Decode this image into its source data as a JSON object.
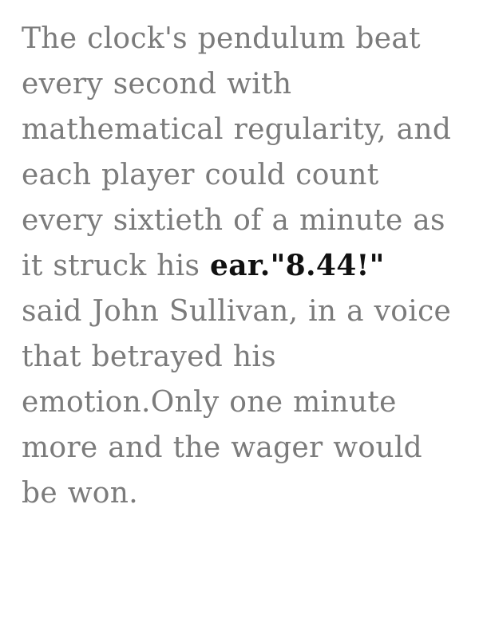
{
  "passage": {
    "before": "The clock's pendulum beat every second with mathematical regularity, and each player could count every sixtieth of a minute as it struck his ",
    "highlight": "ear.\"8.44!\"",
    "after": " said John Sullivan, in a voice that betrayed his emotion.Only one minute more and the wager would be won."
  },
  "colors": {
    "body_text": "#7b7b7b",
    "highlight_text": "#111111",
    "background": "#ffffff"
  }
}
